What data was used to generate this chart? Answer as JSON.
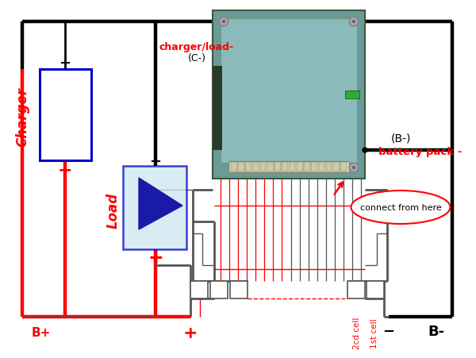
{
  "bg_color": "#ffffff",
  "black": "#000000",
  "red": "#ff0000",
  "blue": "#0000cc",
  "light_blue": "#cce8f0",
  "dark_blue": "#1a1aaa",
  "gray": "#555555",
  "board_face": "#6a9a9a",
  "board_face2": "#8ababa",
  "board_edge": "#4a6a4a",
  "figsize": [
    6.0,
    4.52
  ],
  "dpi": 100,
  "labels": {
    "charger": "Charger",
    "load": "Load",
    "charger_load_minus": "charger/load-",
    "c_minus": "(C-)",
    "b_minus_top": "(B-)",
    "battery_pack_minus": "battery pack -",
    "connect_from_here": "connect from here",
    "b_plus": "B+",
    "b_minus_bottom": "B-",
    "plus_load": "+",
    "plus_bottom": "+",
    "minus_charger": "-",
    "minus_load": "-",
    "minus_bottom": "-",
    "2cd_cell": "2cd cell",
    "1st_cell": "1st cell"
  }
}
